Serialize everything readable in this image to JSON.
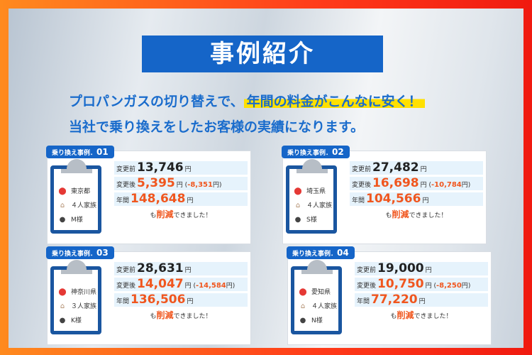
{
  "title": "事例紹介",
  "subtitle": {
    "line1_prefix": "プロパンガスの切り替えで、",
    "line1_highlight": "年間の料金がこんなに安く！",
    "line2": "当社で乗り換えをしたお客様の実績になります。"
  },
  "colors": {
    "accent_blue": "#1565c8",
    "orange": "#f0561e",
    "highlight": "#ffe000"
  },
  "labels": {
    "before": "変更前",
    "after": "変更後",
    "annual": "年間",
    "yen": "円",
    "footer_pre": "も",
    "footer_red": "削減",
    "footer_post": "できました！"
  },
  "icons": [
    "location-pin-icon",
    "house-icon",
    "person-icon"
  ],
  "cases": [
    {
      "tag": "乗り換え事例．",
      "num": "01",
      "pref": "東京都",
      "family": "４人家族",
      "name": "M様",
      "before": "13,746",
      "after": "5,395",
      "diff": "-8,351",
      "annual": "148,648"
    },
    {
      "tag": "乗り換え事例．",
      "num": "02",
      "pref": "埼玉県",
      "family": "４人家族",
      "name": "S様",
      "before": "27,482",
      "after": "16,698",
      "diff": "-10,784",
      "annual": "104,566"
    },
    {
      "tag": "乗り換え事例．",
      "num": "03",
      "pref": "神奈川県",
      "family": "３人家族",
      "name": "K様",
      "before": "28,631",
      "after": "14,047",
      "diff": "-14,584",
      "annual": "136,506"
    },
    {
      "tag": "乗り換え事例．",
      "num": "04",
      "pref": "愛知県",
      "family": "４人家族",
      "name": "N様",
      "before": "19,000",
      "after": "10,750",
      "diff": "-8,250",
      "annual": "77,220"
    }
  ]
}
